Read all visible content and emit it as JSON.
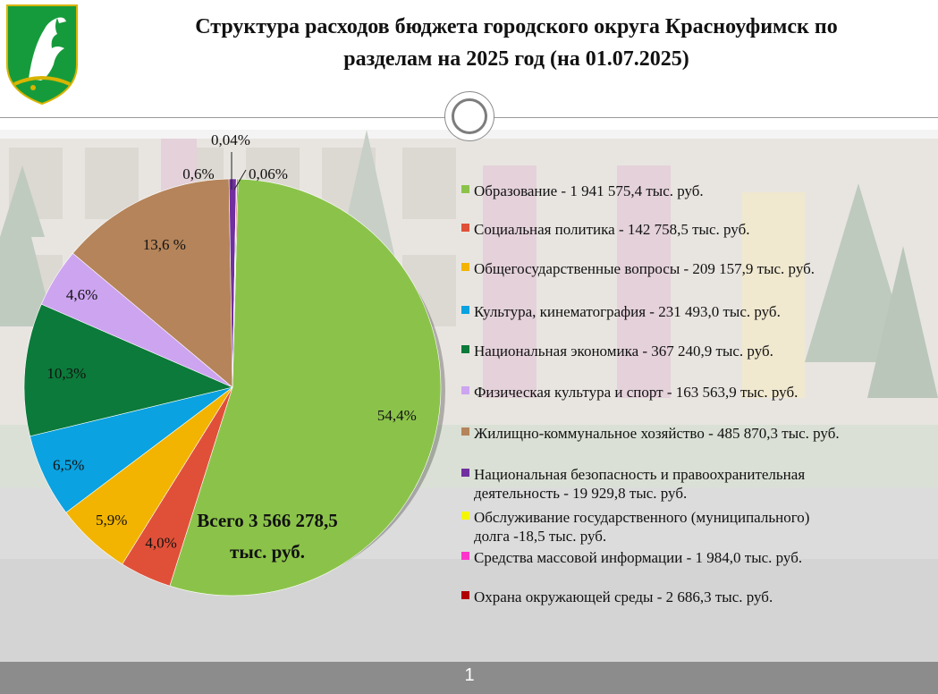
{
  "header": {
    "title_line1": "Структура расходов бюджета городского округа Красноуфимск по",
    "title_line2": "разделам на 2025 год (на 01.07.2025)"
  },
  "footer": {
    "page_number": "1"
  },
  "colors": {
    "header_bg": "#ffffff",
    "footer_bg": "#8c8c8c",
    "emblem_green": "#169b3c"
  },
  "chart_data": {
    "type": "pie",
    "title": "Структура расходов бюджета городского округа Красноуфимск по разделам на 2025 год (на 01.07.2025)",
    "total_label_line1": "Всего 3 566 278,5",
    "total_label_line2": "тыс. руб.",
    "legend_position": "right",
    "slices": [
      {
        "legend": "Образование - 1 941 575,4 тыс. руб.",
        "value": 1941575.4,
        "label": "54,4%",
        "color": "#8bc34a"
      },
      {
        "legend": "Социальная политика - 142 758,5  тыс. руб.",
        "value": 142758.5,
        "label": "4,0%",
        "color": "#e05038"
      },
      {
        "legend": "Общегосударственные вопросы - 209 157,9 тыс. руб.",
        "value": 209157.9,
        "label": "5,9%",
        "color": "#f2b400"
      },
      {
        "legend": "Культура, кинематография - 231 493,0 тыс. руб.",
        "value": 231493.0,
        "label": "6,5%",
        "color": "#0aa2e0"
      },
      {
        "legend": "Национальная экономика - 367 240,9 тыс. руб.",
        "value": 367240.9,
        "label": "10,3%",
        "color": "#0b7a3a"
      },
      {
        "legend": "Физическая культура и спорт - 163 563,9 тыс. руб.",
        "value": 163563.9,
        "label": "4,6%",
        "color": "#cda4f0"
      },
      {
        "legend": "Жилищно-коммунальное хозяйство - 485 870,3 тыс. руб.",
        "value": 485870.3,
        "label": "13,6 %",
        "color": "#b5845a"
      },
      {
        "legend": "Национальная безопасность и правоохранительная деятельность - 19 929,8 тыс. руб.",
        "legend_line1": "Национальная безопасность и правоохранительная",
        "legend_line2": "деятельность - 19 929,8 тыс. руб.",
        "value": 19929.8,
        "label": "0,6%",
        "color": "#7030a0"
      },
      {
        "legend": "Обслуживание государственного (муниципального) долга -18,5 тыс. руб.",
        "legend_line1": "Обслуживание государственного (муниципального)",
        "legend_line2": "долга -18,5 тыс. руб.",
        "value": 18.5,
        "label": "",
        "color": "#f5f500"
      },
      {
        "legend": "Средства массовой информации - 1 984,0 тыс. руб.",
        "value": 1984.0,
        "label": "0,06%",
        "color": "#ff33cc"
      },
      {
        "legend": "Охрана окружающей среды - 2 686,3 тыс. руб.",
        "value": 2686.3,
        "label": "",
        "color": "#b00000"
      }
    ],
    "extra_labels": [
      "0,04%"
    ]
  }
}
